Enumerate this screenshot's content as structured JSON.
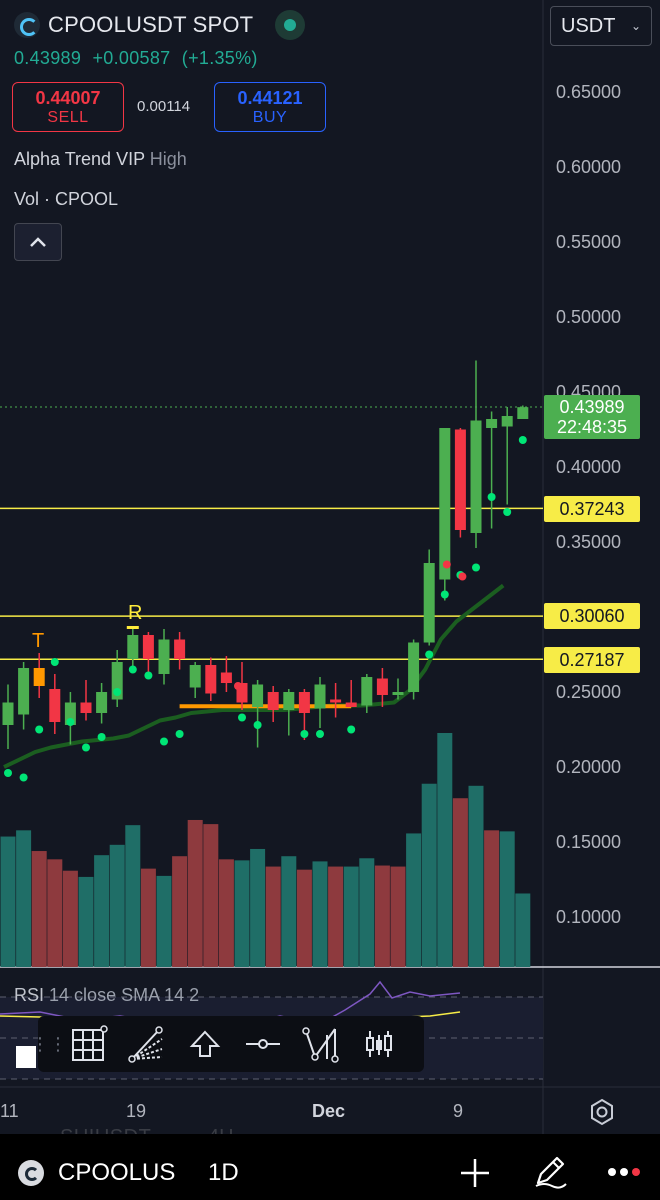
{
  "header": {
    "symbol_title": "CPOOLUSDT SPOT",
    "currency": "USDT",
    "price": "0.43989",
    "change": "+0.00587",
    "change_pct": "(+1.35%)",
    "sell_price": "0.44007",
    "sell_label": "SELL",
    "spread": "0.00114",
    "buy_price": "0.44121",
    "buy_label": "BUY",
    "indicator_name": "Alpha Trend VIP",
    "indicator_param": "High",
    "volume_label": "Vol · CPOOL"
  },
  "price_axis": {
    "labels": [
      "0.65000",
      "0.60000",
      "0.55000",
      "0.50000",
      "0.45000",
      "0.40000",
      "0.35000",
      "0.30000",
      "0.25000",
      "0.20000",
      "0.15000",
      "0.10000"
    ],
    "current_price_tag": "0.43989",
    "countdown": "22:48:35",
    "level_tags": [
      "0.37243",
      "0.30060",
      "0.27187"
    ]
  },
  "signals": {
    "t_label": "T",
    "r_label": "R"
  },
  "rsi": {
    "name": "RSI",
    "params": "14 close SMA 14 2"
  },
  "time_axis": {
    "labels": [
      "11",
      "19",
      "Dec",
      "9"
    ]
  },
  "bottom_bar": {
    "symbol": "CPOOLUS",
    "interval": "1D",
    "ghost_symbol": "SUIUSDT",
    "ghost_interval": "4H"
  },
  "colors": {
    "up": "#4caf50",
    "down": "#f23645",
    "vol_up": "#1f6e67",
    "vol_down": "#8e3a3e",
    "level_line": "#f7ec47",
    "trend_line": "#1b5e20",
    "dot_green": "#00e676",
    "signal_orange": "#ff9800"
  },
  "icons": [
    "grid-tool-icon",
    "fib-fan-icon",
    "arrow-up-icon",
    "horizontal-line-icon",
    "path-tool-icon",
    "candle-pattern-icon",
    "settings-icon",
    "plus-icon",
    "pen-icon",
    "more-icon"
  ],
  "chart_data": {
    "type": "candlestick",
    "ylim": [
      0.07,
      0.68
    ],
    "levels": [
      0.37243,
      0.3006,
      0.27187
    ],
    "candles": [
      {
        "o": 0.228,
        "h": 0.255,
        "l": 0.212,
        "c": 0.243
      },
      {
        "o": 0.235,
        "h": 0.27,
        "l": 0.225,
        "c": 0.266
      },
      {
        "o": 0.266,
        "h": 0.276,
        "l": 0.246,
        "c": 0.254
      },
      {
        "o": 0.252,
        "h": 0.262,
        "l": 0.222,
        "c": 0.23
      },
      {
        "o": 0.228,
        "h": 0.25,
        "l": 0.215,
        "c": 0.243
      },
      {
        "o": 0.243,
        "h": 0.258,
        "l": 0.231,
        "c": 0.236
      },
      {
        "o": 0.236,
        "h": 0.256,
        "l": 0.229,
        "c": 0.25
      },
      {
        "o": 0.245,
        "h": 0.278,
        "l": 0.24,
        "c": 0.27
      },
      {
        "o": 0.272,
        "h": 0.293,
        "l": 0.265,
        "c": 0.288
      },
      {
        "o": 0.288,
        "h": 0.29,
        "l": 0.26,
        "c": 0.272
      },
      {
        "o": 0.262,
        "h": 0.292,
        "l": 0.255,
        "c": 0.285
      },
      {
        "o": 0.285,
        "h": 0.29,
        "l": 0.265,
        "c": 0.272
      },
      {
        "o": 0.253,
        "h": 0.27,
        "l": 0.246,
        "c": 0.268
      },
      {
        "o": 0.268,
        "h": 0.273,
        "l": 0.244,
        "c": 0.249
      },
      {
        "o": 0.263,
        "h": 0.274,
        "l": 0.25,
        "c": 0.256
      },
      {
        "o": 0.256,
        "h": 0.27,
        "l": 0.238,
        "c": 0.243
      },
      {
        "o": 0.24,
        "h": 0.258,
        "l": 0.213,
        "c": 0.255
      },
      {
        "o": 0.25,
        "h": 0.254,
        "l": 0.23,
        "c": 0.238
      },
      {
        "o": 0.238,
        "h": 0.252,
        "l": 0.221,
        "c": 0.25
      },
      {
        "o": 0.25,
        "h": 0.252,
        "l": 0.218,
        "c": 0.236
      },
      {
        "o": 0.239,
        "h": 0.26,
        "l": 0.226,
        "c": 0.255
      },
      {
        "o": 0.245,
        "h": 0.256,
        "l": 0.233,
        "c": 0.243
      },
      {
        "o": 0.243,
        "h": 0.258,
        "l": 0.24,
        "c": 0.24
      },
      {
        "o": 0.241,
        "h": 0.262,
        "l": 0.236,
        "c": 0.26
      },
      {
        "o": 0.259,
        "h": 0.266,
        "l": 0.24,
        "c": 0.248
      },
      {
        "o": 0.248,
        "h": 0.259,
        "l": 0.245,
        "c": 0.25
      },
      {
        "o": 0.25,
        "h": 0.285,
        "l": 0.245,
        "c": 0.283
      },
      {
        "o": 0.283,
        "h": 0.345,
        "l": 0.281,
        "c": 0.336
      },
      {
        "o": 0.325,
        "h": 0.426,
        "l": 0.311,
        "c": 0.426
      },
      {
        "o": 0.425,
        "h": 0.426,
        "l": 0.353,
        "c": 0.358
      },
      {
        "o": 0.356,
        "h": 0.471,
        "l": 0.346,
        "c": 0.431
      },
      {
        "o": 0.426,
        "h": 0.437,
        "l": 0.359,
        "c": 0.432
      },
      {
        "o": 0.427,
        "h": 0.44,
        "l": 0.375,
        "c": 0.434
      },
      {
        "o": 0.432,
        "h": 0.441,
        "l": 0.432,
        "c": 0.43989
      }
    ],
    "volume": [
      {
        "v": 0.126,
        "up": true
      },
      {
        "v": 0.132,
        "up": true
      },
      {
        "v": 0.112,
        "up": false
      },
      {
        "v": 0.104,
        "up": false
      },
      {
        "v": 0.093,
        "up": false
      },
      {
        "v": 0.087,
        "up": true
      },
      {
        "v": 0.108,
        "up": true
      },
      {
        "v": 0.118,
        "up": true
      },
      {
        "v": 0.137,
        "up": true
      },
      {
        "v": 0.095,
        "up": false
      },
      {
        "v": 0.088,
        "up": true
      },
      {
        "v": 0.107,
        "up": false
      },
      {
        "v": 0.142,
        "up": false
      },
      {
        "v": 0.138,
        "up": false
      },
      {
        "v": 0.104,
        "up": false
      },
      {
        "v": 0.103,
        "up": true
      },
      {
        "v": 0.114,
        "up": true
      },
      {
        "v": 0.097,
        "up": false
      },
      {
        "v": 0.107,
        "up": true
      },
      {
        "v": 0.094,
        "up": false
      },
      {
        "v": 0.102,
        "up": true
      },
      {
        "v": 0.097,
        "up": false
      },
      {
        "v": 0.097,
        "up": true
      },
      {
        "v": 0.105,
        "up": true
      },
      {
        "v": 0.098,
        "up": false
      },
      {
        "v": 0.097,
        "up": false
      },
      {
        "v": 0.129,
        "up": true
      },
      {
        "v": 0.177,
        "up": true
      },
      {
        "v": 0.226,
        "up": true
      },
      {
        "v": 0.163,
        "up": false
      },
      {
        "v": 0.175,
        "up": true
      },
      {
        "v": 0.132,
        "up": false
      },
      {
        "v": 0.131,
        "up": true
      },
      {
        "v": 0.071,
        "up": true
      }
    ],
    "trend": [
      0.2,
      0.205,
      0.21,
      0.213,
      0.215,
      0.217,
      0.218,
      0.219,
      0.221,
      0.226,
      0.231,
      0.233,
      0.236,
      0.237,
      0.238,
      0.238,
      0.238,
      0.238,
      0.238,
      0.239,
      0.24,
      0.241,
      0.241,
      0.241,
      0.242,
      0.243,
      0.251,
      0.265,
      0.285,
      0.297,
      0.305,
      0.313,
      0.321
    ]
  }
}
